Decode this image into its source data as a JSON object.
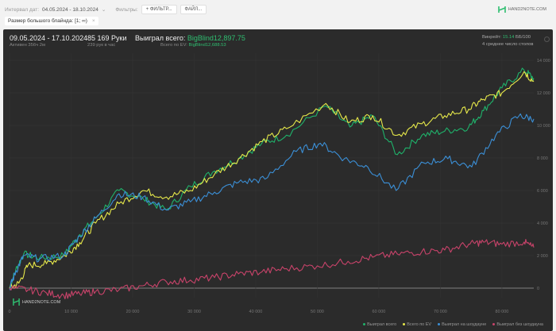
{
  "filters": {
    "date_label": "Интервал дат:",
    "date_value": "04.05.2024 - 18.10.2024",
    "filters_label": "Фильтры:",
    "add_filter": "+ ФИЛЬТР...",
    "file": "ФАЙЛ...",
    "chip": "Размер большого блайнда: [1; ∞)",
    "chip_close": "×"
  },
  "brand": "HAND2NOTE.COM",
  "header": {
    "period": "09.05.2024 - 17.10.2024",
    "active": "Активен 356ч 2м",
    "hands": "85 169 Руки",
    "hands_rate": "239 рук в час",
    "won_label": "Выиграл всего:",
    "won_value": "BigBlind12,897.75",
    "ev_label": "Всего по EV:",
    "ev_value": "BigBlind12,688.53",
    "winrate_label": "Винрейт:",
    "winrate_value": "15.14",
    "winrate_unit": "ББ/100",
    "tables": "4 среднее число столов"
  },
  "colors": {
    "green": "#1fb36b",
    "yellow": "#e6e84a",
    "blue": "#3b8fd6",
    "red": "#c8436a"
  },
  "chart_data": {
    "type": "line",
    "xlim": [
      0,
      85169
    ],
    "ylim": [
      -1000,
      15000
    ],
    "x_ticks": [
      0,
      10000,
      20000,
      30000,
      40000,
      50000,
      60000,
      70000,
      80000
    ],
    "x_tick_labels": [
      "0",
      "10 000",
      "20 000",
      "30 000",
      "40 000",
      "50 000",
      "60 000",
      "70 000",
      "80 000"
    ],
    "y_ticks": [
      0,
      2000,
      4000,
      6000,
      8000,
      10000,
      12000,
      14000
    ],
    "y_tick_labels": [
      "0",
      "2 000",
      "4 000",
      "6 000",
      "8 000",
      "10 000",
      "12 000",
      "14 000"
    ],
    "legend": "bottom-right",
    "series": [
      {
        "name": "Выиграл всего",
        "color": "#1fb36b",
        "points": [
          [
            0,
            0
          ],
          [
            1000,
            1100
          ],
          [
            2300,
            2100
          ],
          [
            4900,
            1850
          ],
          [
            8800,
            2000
          ],
          [
            11400,
            3300
          ],
          [
            14000,
            4300
          ],
          [
            17800,
            6000
          ],
          [
            21700,
            5500
          ],
          [
            25500,
            4800
          ],
          [
            29400,
            6250
          ],
          [
            33300,
            7200
          ],
          [
            37200,
            7950
          ],
          [
            41000,
            8900
          ],
          [
            45000,
            9400
          ],
          [
            51400,
            11200
          ],
          [
            55300,
            9900
          ],
          [
            59000,
            10600
          ],
          [
            63000,
            8200
          ],
          [
            67000,
            9400
          ],
          [
            70700,
            9650
          ],
          [
            74600,
            9900
          ],
          [
            77000,
            10900
          ],
          [
            80000,
            12300
          ],
          [
            83600,
            13400
          ],
          [
            85169,
            12898
          ]
        ]
      },
      {
        "name": "Всего по EV",
        "color": "#e6e84a",
        "points": [
          [
            0,
            0
          ],
          [
            1500,
            300
          ],
          [
            3000,
            1400
          ],
          [
            6000,
            1500
          ],
          [
            9000,
            2000
          ],
          [
            11400,
            2800
          ],
          [
            14000,
            4000
          ],
          [
            17800,
            5200
          ],
          [
            21700,
            6000
          ],
          [
            25500,
            5600
          ],
          [
            29400,
            6000
          ],
          [
            33300,
            7000
          ],
          [
            37200,
            7950
          ],
          [
            41000,
            9000
          ],
          [
            45000,
            9800
          ],
          [
            51400,
            11350
          ],
          [
            55300,
            10200
          ],
          [
            59000,
            10600
          ],
          [
            63000,
            9400
          ],
          [
            67000,
            10100
          ],
          [
            70700,
            10600
          ],
          [
            74600,
            11000
          ],
          [
            77000,
            11600
          ],
          [
            80000,
            12000
          ],
          [
            83600,
            13300
          ],
          [
            85169,
            12689
          ]
        ]
      },
      {
        "name": "Выиграл на шоудауне",
        "color": "#3b8fd6",
        "points": [
          [
            0,
            0
          ],
          [
            1000,
            1000
          ],
          [
            2300,
            2000
          ],
          [
            4900,
            1800
          ],
          [
            8800,
            2000
          ],
          [
            11400,
            3200
          ],
          [
            14000,
            4300
          ],
          [
            17800,
            5800
          ],
          [
            21700,
            5600
          ],
          [
            25500,
            4800
          ],
          [
            29400,
            5300
          ],
          [
            33300,
            5900
          ],
          [
            37200,
            6500
          ],
          [
            41500,
            6700
          ],
          [
            46600,
            8400
          ],
          [
            50500,
            8900
          ],
          [
            54400,
            7950
          ],
          [
            58200,
            7450
          ],
          [
            62800,
            6000
          ],
          [
            67300,
            7700
          ],
          [
            71200,
            7950
          ],
          [
            75100,
            7450
          ],
          [
            79000,
            9400
          ],
          [
            82800,
            10600
          ],
          [
            85169,
            10400
          ]
        ]
      },
      {
        "name": "Выиграл без шоудауна",
        "color": "#c8436a",
        "points": [
          [
            0,
            0
          ],
          [
            3000,
            -100
          ],
          [
            6000,
            -300
          ],
          [
            8800,
            -450
          ],
          [
            11400,
            -350
          ],
          [
            14000,
            -200
          ],
          [
            17800,
            -100
          ],
          [
            21700,
            150
          ],
          [
            25500,
            390
          ],
          [
            29400,
            500
          ],
          [
            33300,
            650
          ],
          [
            37200,
            880
          ],
          [
            41000,
            1000
          ],
          [
            45000,
            1200
          ],
          [
            50000,
            1370
          ],
          [
            55000,
            1650
          ],
          [
            59000,
            1900
          ],
          [
            63000,
            2100
          ],
          [
            67000,
            2250
          ],
          [
            70700,
            2340
          ],
          [
            74600,
            2700
          ],
          [
            77000,
            2830
          ],
          [
            80000,
            2700
          ],
          [
            83600,
            2830
          ],
          [
            85169,
            2500
          ]
        ]
      }
    ]
  }
}
